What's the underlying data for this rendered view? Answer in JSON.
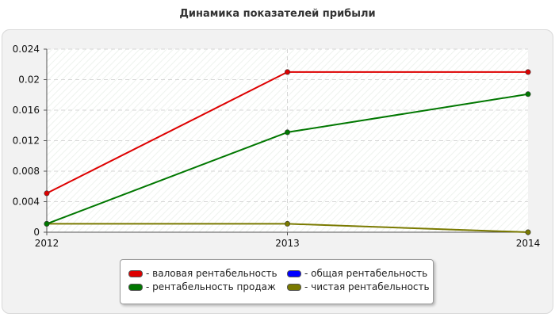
{
  "chart_data": {
    "type": "line",
    "title": "Динамика показателей прибыли",
    "x": [
      "2012",
      "2013",
      "2014"
    ],
    "ylim": [
      0,
      0.024
    ],
    "yticks": [
      "0",
      "0.004",
      "0.008",
      "0.012",
      "0.016",
      "0.02",
      "0.024"
    ],
    "grid": true,
    "legend_placement": "bottom-center",
    "series": [
      {
        "name": "- валовая рентабельность",
        "color": "#dd0000",
        "values": [
          0.0051,
          0.021,
          0.021
        ]
      },
      {
        "name": "- общая рентабельность",
        "color": "#0000ff",
        "values": [
          null,
          null,
          null
        ]
      },
      {
        "name": "- рентабельность продаж",
        "color": "#007700",
        "values": [
          0.0011,
          0.0131,
          0.0181
        ]
      },
      {
        "name": "- чистая рентабельность",
        "color": "#7a7a00",
        "values": [
          0.0011,
          0.0011,
          0.0
        ]
      }
    ]
  }
}
